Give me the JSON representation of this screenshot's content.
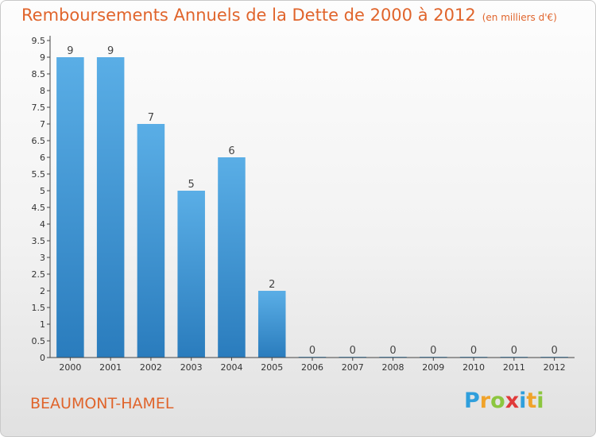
{
  "title": "Remboursements Annuels de la Dette de 2000 à 2012",
  "subtitle": "(en milliers d'€)",
  "commune": "BEAUMONT-HAMEL",
  "logo": {
    "letters": [
      "P",
      "r",
      "o",
      "x",
      "i",
      "t",
      "i"
    ],
    "colors": [
      "#2f9fdc",
      "#f0a32a",
      "#8cc63f",
      "#e03a3a",
      "#2f9fdc",
      "#f0a32a",
      "#8cc63f"
    ]
  },
  "colors": {
    "bar_top": "#5aaee6",
    "bar_bottom": "#2a7cbd",
    "text_accent": "#e0642b"
  },
  "chart_data": {
    "type": "bar",
    "title": "Remboursements Annuels de la Dette de 2000 à 2012",
    "subtitle": "(en milliers d'€)",
    "xlabel": "",
    "ylabel": "",
    "categories": [
      "2000",
      "2001",
      "2002",
      "2003",
      "2004",
      "2005",
      "2006",
      "2007",
      "2008",
      "2009",
      "2010",
      "2011",
      "2012"
    ],
    "values": [
      9,
      9,
      7,
      5,
      6,
      2,
      0,
      0,
      0,
      0,
      0,
      0,
      0
    ],
    "data_labels": [
      "9",
      "9",
      "7",
      "5",
      "6",
      "2",
      "0",
      "0",
      "0",
      "0",
      "0",
      "0",
      "0"
    ],
    "yticks": [
      "0",
      "0.5",
      "1",
      "1.5",
      "2",
      "2.5",
      "3",
      "3.5",
      "4",
      "4.5",
      "5",
      "5.5",
      "6",
      "6.5",
      "7",
      "7.5",
      "8",
      "8.5",
      "9",
      "9.5"
    ],
    "ylim": [
      0,
      9.5
    ],
    "grid": false,
    "legend": "none"
  }
}
